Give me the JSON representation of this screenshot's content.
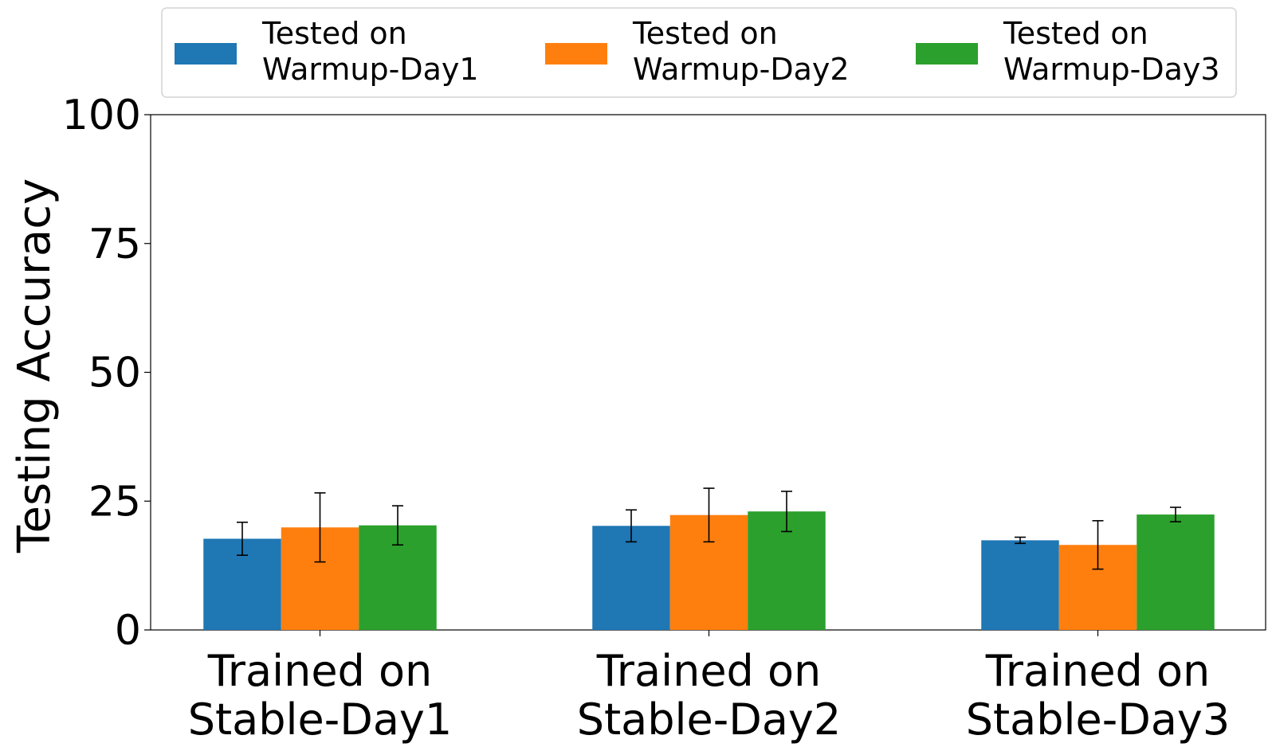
{
  "chart_data": {
    "type": "bar",
    "title": "",
    "xlabel": "",
    "ylabel": "Testing Accuracy",
    "ylim": [
      0,
      100
    ],
    "yticks": [
      "0",
      "25",
      "50",
      "75",
      "100"
    ],
    "categories": [
      [
        "Trained on",
        "Stable-Day1"
      ],
      [
        "Trained on",
        "Stable-Day2"
      ],
      [
        "Trained on",
        "Stable-Day3"
      ]
    ],
    "series": [
      {
        "name": [
          "Tested on",
          "Warmup-Day1"
        ],
        "color": "#1f77b4",
        "values": [
          17.7,
          20.2,
          17.4
        ],
        "errors": [
          3.2,
          3.1,
          0.6
        ]
      },
      {
        "name": [
          "Tested on",
          "Warmup-Day2"
        ],
        "color": "#ff7f0e",
        "values": [
          19.9,
          22.3,
          16.5
        ],
        "errors": [
          6.7,
          5.2,
          4.7
        ]
      },
      {
        "name": [
          "Tested on",
          "Warmup-Day3"
        ],
        "color": "#2ca02c",
        "values": [
          20.3,
          23.0,
          22.4
        ],
        "errors": [
          3.8,
          3.9,
          1.4
        ]
      }
    ],
    "legend": "top",
    "grid": false
  }
}
